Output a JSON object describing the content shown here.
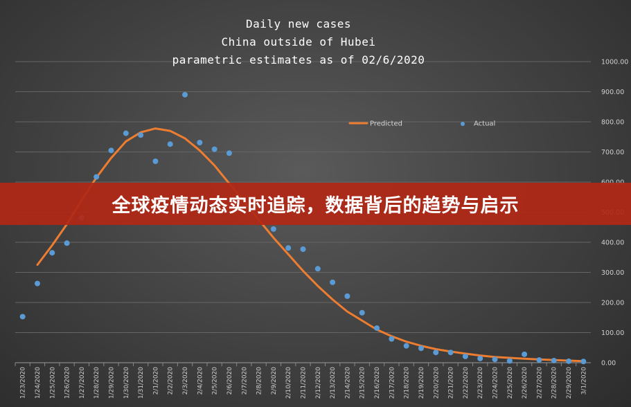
{
  "chart_data": {
    "type": "line",
    "title": [
      "Daily new cases",
      "China outside of Hubei",
      "parametric estimates as of 02/6/2020"
    ],
    "xlabel": "",
    "ylabel": "",
    "ylim": [
      0,
      1000
    ],
    "yticks": [
      "0.00",
      "100.00",
      "200.00",
      "300.00",
      "400.00",
      "500.00",
      "600.00",
      "700.00",
      "800.00",
      "900.00",
      "1000.00"
    ],
    "grid": true,
    "legend_position": "top-right",
    "categories": [
      "1/23/2020",
      "1/24/2020",
      "1/25/2020",
      "1/26/2020",
      "1/27/2020",
      "1/28/2020",
      "1/29/2020",
      "1/30/2020",
      "1/31/2020",
      "2/1/2020",
      "2/2/2020",
      "2/3/2020",
      "2/4/2020",
      "2/5/2020",
      "2/6/2020",
      "2/7/2020",
      "2/8/2020",
      "2/9/2020",
      "2/10/2020",
      "2/11/2020",
      "2/12/2020",
      "2/13/2020",
      "2/14/2020",
      "2/15/2020",
      "2/16/2020",
      "2/17/2020",
      "2/18/2020",
      "2/19/2020",
      "2/20/2020",
      "2/21/2020",
      "2/22/2020",
      "2/23/2020",
      "2/24/2020",
      "2/25/2020",
      "2/26/2020",
      "2/27/2020",
      "2/28/2020",
      "2/29/2020",
      "3/1/2020"
    ],
    "series": [
      {
        "name": "Predicted",
        "style": "line",
        "color": "#ed7d31",
        "values": [
          null,
          325,
          390,
          460,
          540,
          615,
          680,
          735,
          765,
          778,
          770,
          745,
          705,
          655,
          595,
          535,
          475,
          415,
          360,
          305,
          255,
          210,
          170,
          140,
          110,
          88,
          70,
          56,
          45,
          37,
          30,
          24,
          19,
          16,
          13,
          11,
          9,
          7,
          5
        ]
      },
      {
        "name": "Actual",
        "style": "scatter",
        "color": "#5b9bd5",
        "values": [
          153,
          263,
          365,
          397,
          481,
          617,
          705,
          762,
          756,
          669,
          726,
          890,
          731,
          709,
          696,
          null,
          null,
          444,
          381,
          377,
          312,
          267,
          221,
          166,
          115,
          79,
          56,
          48,
          34,
          34,
          21,
          14,
          11,
          6,
          28,
          9,
          7,
          5,
          4
        ]
      }
    ]
  },
  "overlay": {
    "banner_text": "全球疫情动态实时追踪，数据背后的趋势与启示"
  }
}
